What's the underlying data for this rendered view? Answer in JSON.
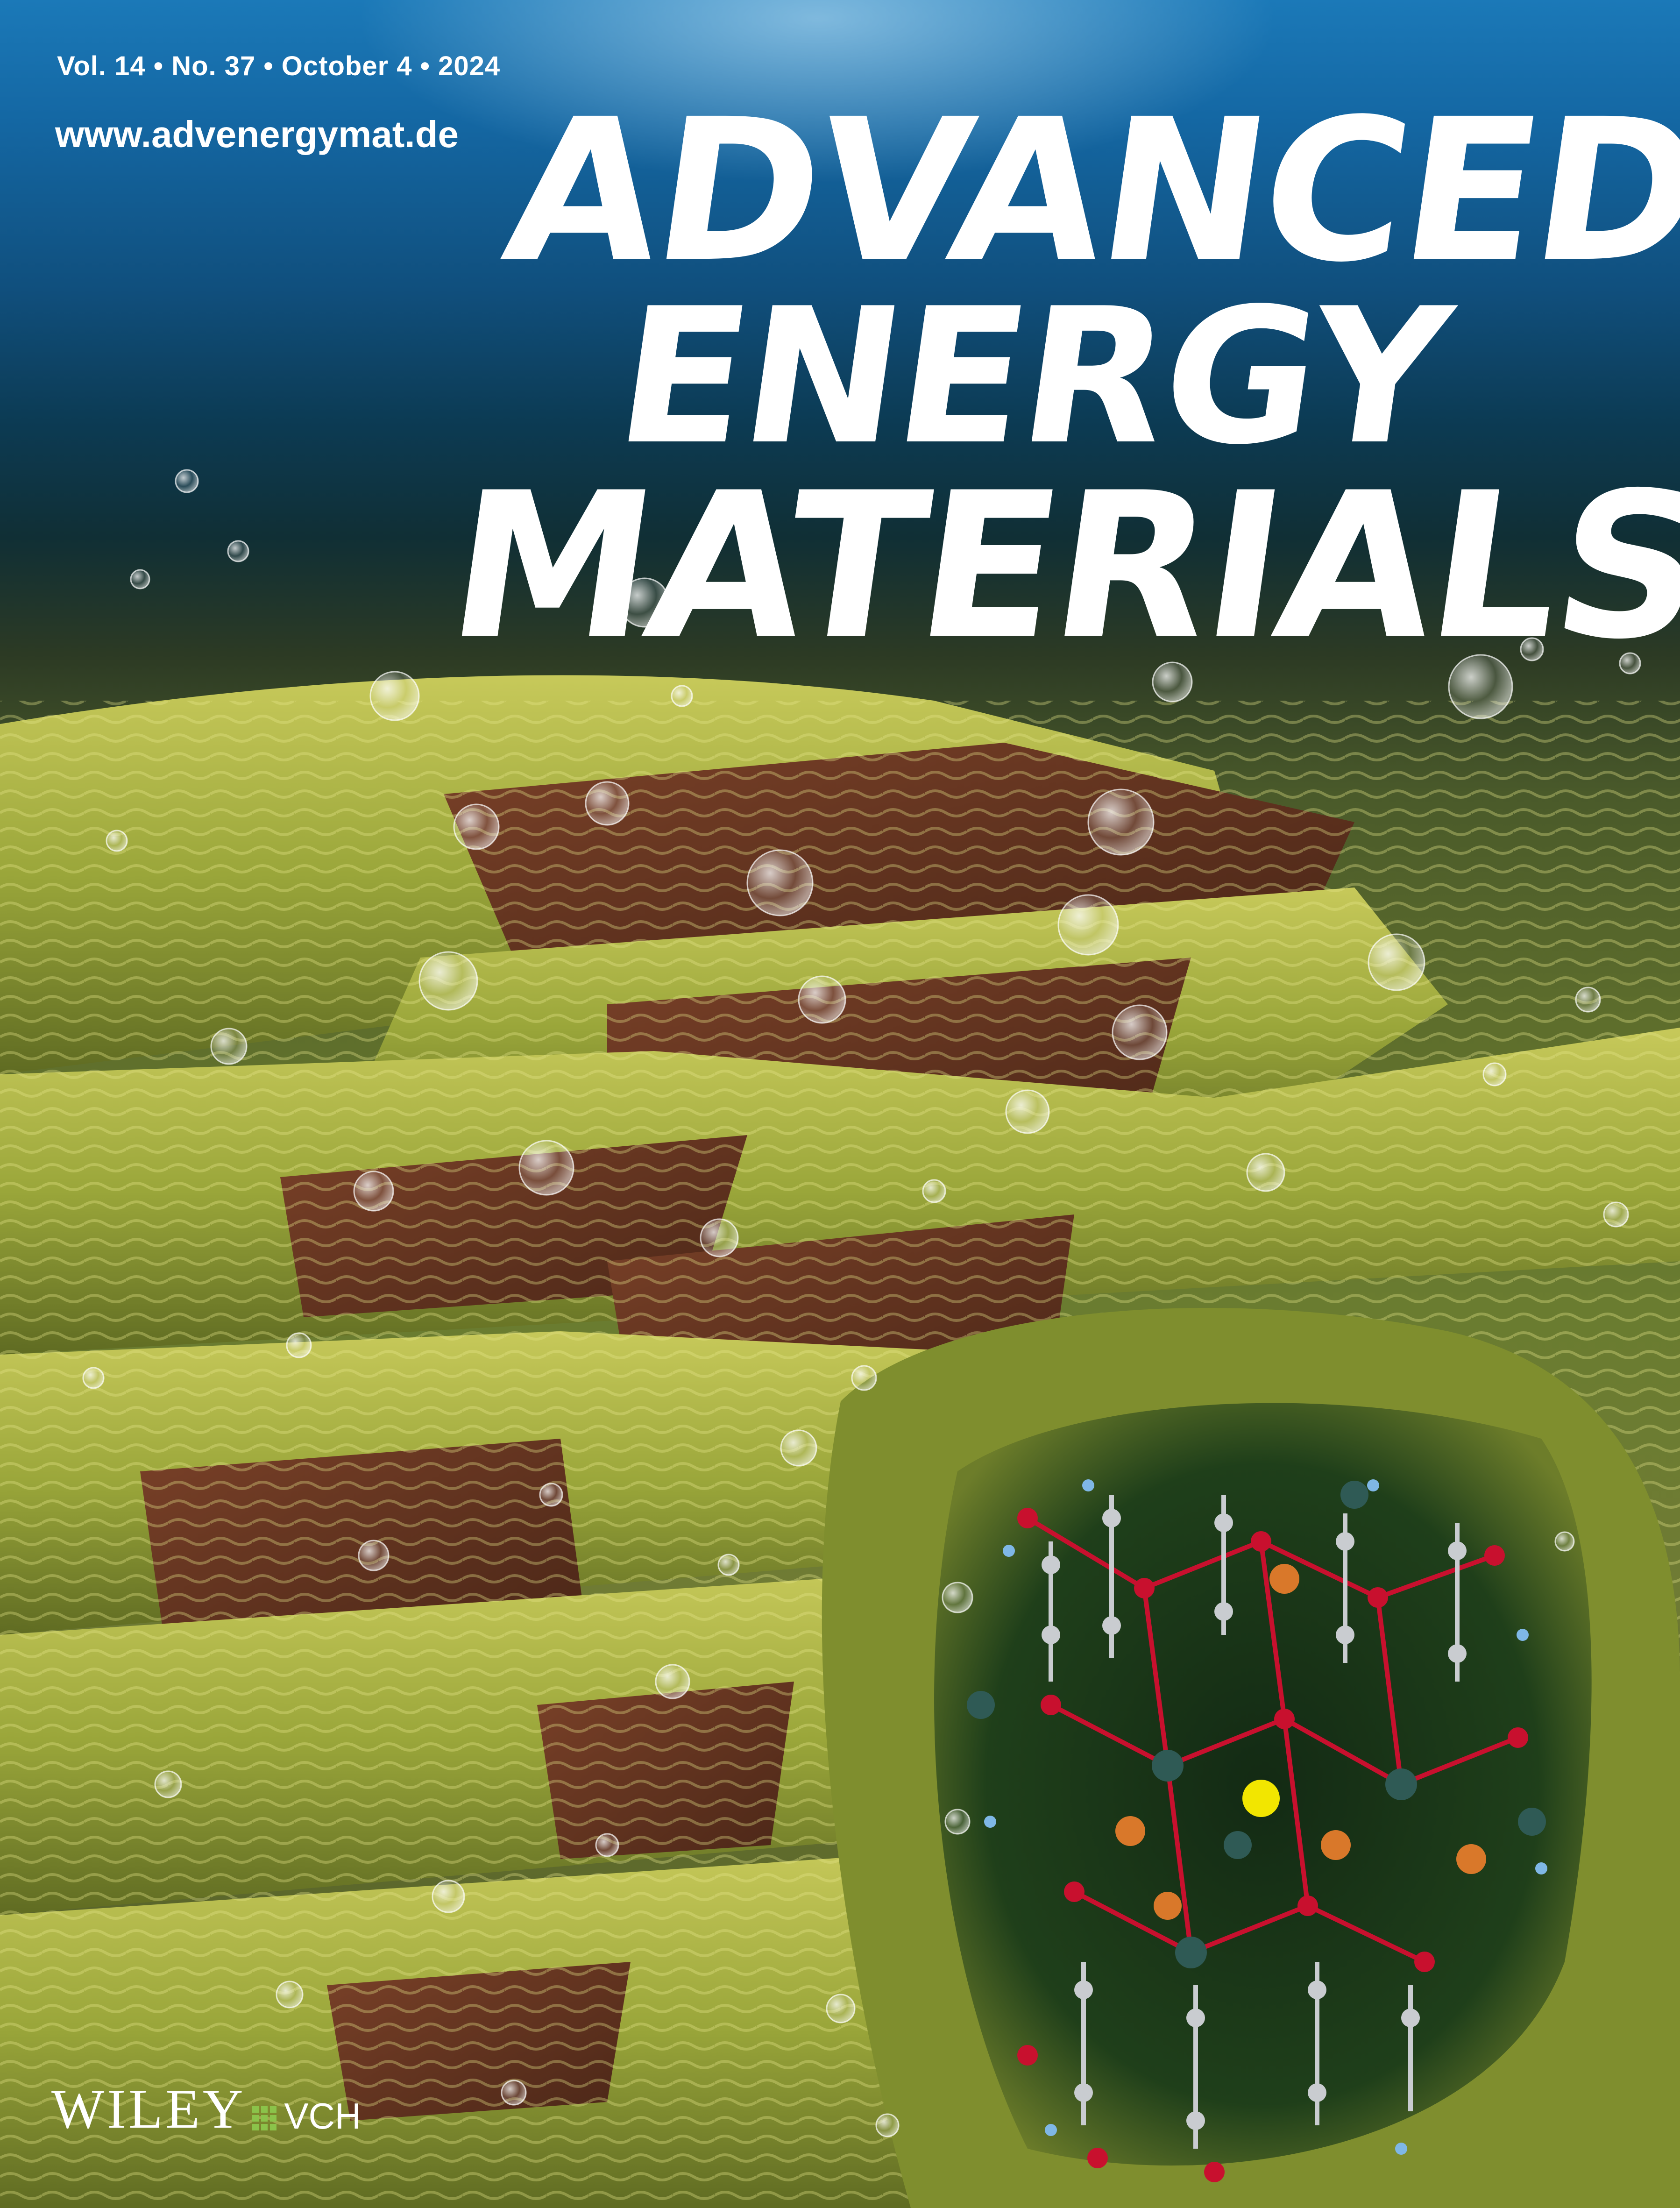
{
  "issue": {
    "volume": "Vol. 14",
    "number": "No. 37",
    "date": "October 4",
    "year": "2024",
    "separator": "•",
    "text": "Vol. 14 • No. 37 • October 4 • 2024"
  },
  "website": "www.advenergymat.de",
  "masthead": {
    "line1": "ADVANCED",
    "line2": "ENERGY",
    "line3": "MATERIALS"
  },
  "publisher": {
    "name": "WILEY",
    "imprint": "VCH"
  },
  "colors": {
    "masthead_text": "#ffffff",
    "water_top": "#1b79b8",
    "layer_green": "#9aa63a",
    "layer_brown": "#6b3a22",
    "atom_red": "#c8102e",
    "atom_teal": "#2f5a55",
    "atom_orange": "#d9782a",
    "atom_gray": "#c9ccd0",
    "atom_blue": "#7fb7e6",
    "atom_yellow": "#f2e600",
    "logo_green": "#8bc34a"
  }
}
